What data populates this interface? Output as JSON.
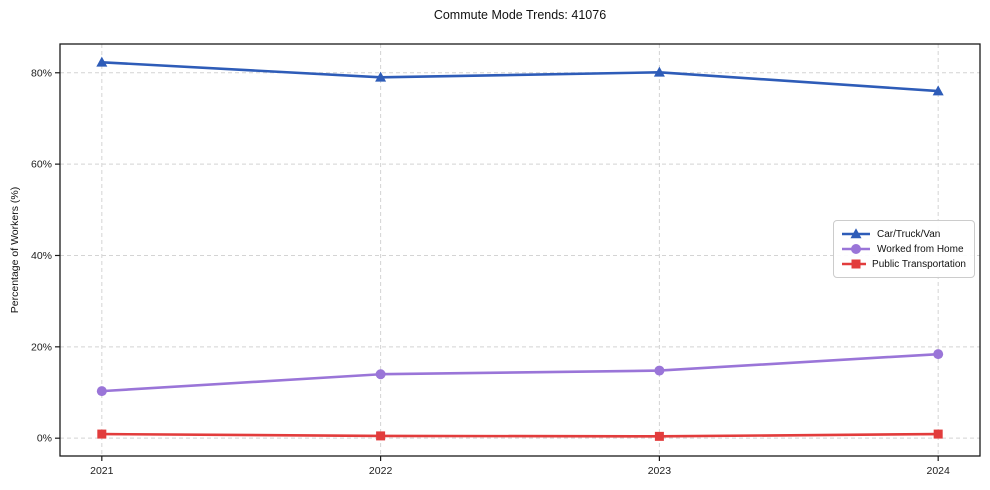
{
  "chart_data": {
    "type": "line",
    "title": "Commute Mode Trends: 41076",
    "xlabel": "",
    "ylabel": "Percentage of Workers (%)",
    "x": [
      2021,
      2022,
      2023,
      2024
    ],
    "x_tick_labels": [
      "2021",
      "2022",
      "2023",
      "2024"
    ],
    "xlim": [
      2020.85,
      2024.15
    ],
    "ylim": [
      -3.9,
      86.3
    ],
    "yticks": [
      0,
      20,
      40,
      60,
      80
    ],
    "y_tick_labels": [
      "0%",
      "20%",
      "40%",
      "60%",
      "80%"
    ],
    "grid": "both-dashed",
    "legend_position": "center-right",
    "series": [
      {
        "name": "Car/Truck/Van",
        "color": "#2e5cb8",
        "marker": "triangle",
        "values": [
          82.3,
          79.0,
          80.1,
          76.0
        ]
      },
      {
        "name": "Worked from Home",
        "color": "#9a75d8",
        "marker": "circle",
        "values": [
          10.3,
          14.0,
          14.8,
          18.4
        ]
      },
      {
        "name": "Public Transportation",
        "color": "#e23c3c",
        "marker": "square",
        "values": [
          0.9,
          0.5,
          0.4,
          0.9
        ]
      }
    ]
  },
  "style_colors": {
    "grid": "#d4d4d4",
    "frame": "#1a1a1a",
    "tick": "#1a1a1a",
    "tick_label": "#1c1c1c",
    "legend_border": "#cccccc",
    "background": "#ffffff"
  }
}
